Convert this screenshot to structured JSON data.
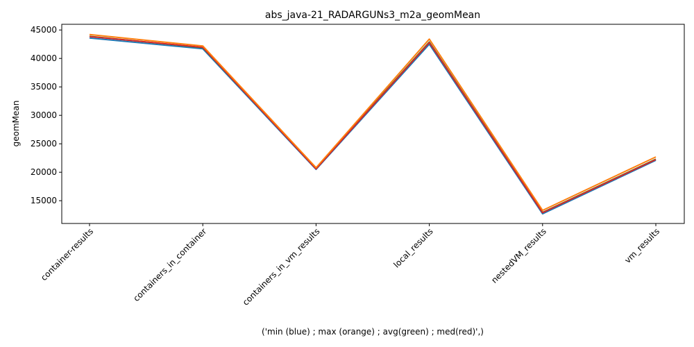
{
  "chart_data": {
    "type": "line",
    "title": "abs_java-21_RADARGUNs3_m2a_geomMean",
    "xlabel": "('min (blue) ; max (orange) ; avg(green) ; med(red)',)",
    "ylabel": "geomMean",
    "categories": [
      "container-results",
      "containers_in_container",
      "containers_in_vm_results",
      "local_results",
      "nestedVM_results",
      "vm_results"
    ],
    "ylim": [
      11000,
      46000
    ],
    "yticks": [
      15000,
      20000,
      25000,
      30000,
      35000,
      40000,
      45000
    ],
    "grid": false,
    "series": [
      {
        "name": "min",
        "color": "#1f77b4",
        "values": [
          43600,
          41700,
          20500,
          42500,
          12700,
          22100
        ]
      },
      {
        "name": "avg",
        "color": "#2ca02c",
        "values": [
          43900,
          41900,
          20650,
          42900,
          12950,
          22300
        ]
      },
      {
        "name": "med",
        "color": "#d62728",
        "values": [
          43850,
          41950,
          20600,
          42800,
          12900,
          22250
        ]
      },
      {
        "name": "max",
        "color": "#ff7f0e",
        "values": [
          44200,
          42200,
          20800,
          43400,
          13300,
          22700
        ]
      }
    ]
  }
}
